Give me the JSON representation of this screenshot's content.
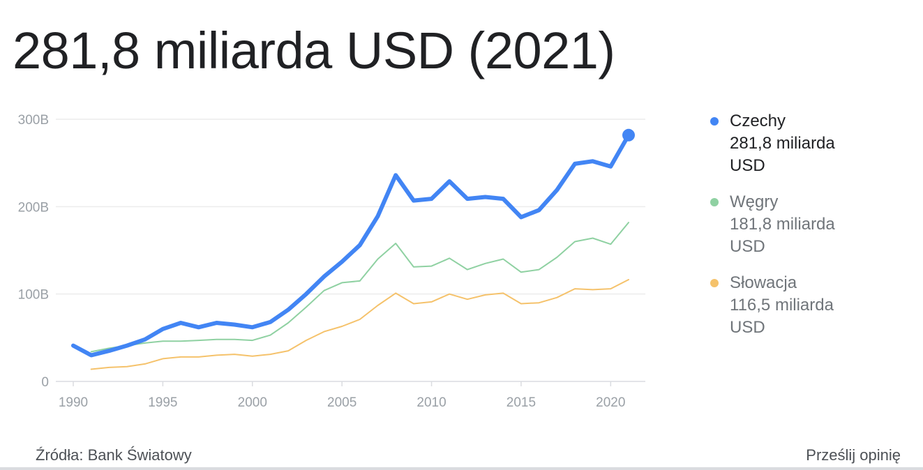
{
  "headline": "281,8 miliarda USD (2021)",
  "source": "Źródła: Bank Światowy",
  "feedback": "Prześlij opinię",
  "chart_data": {
    "type": "line",
    "title": "",
    "xlabel": "",
    "ylabel": "",
    "x": [
      1990,
      1991,
      1992,
      1993,
      1994,
      1995,
      1996,
      1997,
      1998,
      1999,
      2000,
      2001,
      2002,
      2003,
      2004,
      2005,
      2006,
      2007,
      2008,
      2009,
      2010,
      2011,
      2012,
      2013,
      2014,
      2015,
      2016,
      2017,
      2018,
      2019,
      2020,
      2021
    ],
    "xlim": [
      1990,
      2021
    ],
    "ylim": [
      0,
      300
    ],
    "grid": true,
    "legend_position": "right",
    "x_ticks": [
      1990,
      1995,
      2000,
      2005,
      2010,
      2015,
      2020
    ],
    "x_tick_labels": [
      "1990",
      "1995",
      "2000",
      "2005",
      "2010",
      "2015",
      "2020"
    ],
    "y_ticks": [
      0,
      100,
      200,
      300
    ],
    "y_tick_labels": [
      "0",
      "100B",
      "200B",
      "300B"
    ],
    "series": [
      {
        "name": "Czechy",
        "value_label": "281,8 miliarda USD",
        "color": "#4285f4",
        "highlight": true,
        "values": [
          41,
          30,
          35,
          41,
          48,
          60,
          67,
          62,
          67,
          65,
          62,
          68,
          82,
          100,
          120,
          137,
          156,
          189,
          236,
          207,
          209,
          229,
          209,
          211,
          209,
          188,
          196,
          219,
          249,
          252,
          246,
          281.8
        ]
      },
      {
        "name": "Węgry",
        "value_label": "181,8 miliarda USD",
        "color": "#8fd1a2",
        "highlight": false,
        "values": [
          null,
          34,
          38,
          41,
          44,
          46,
          46,
          47,
          48,
          48,
          47,
          53,
          67,
          85,
          104,
          113,
          115,
          140,
          158,
          131,
          132,
          141,
          128,
          135,
          140,
          125,
          128,
          142,
          160,
          164,
          157,
          181.8
        ]
      },
      {
        "name": "Słowacja",
        "value_label": "116,5 miliarda USD",
        "color": "#f5c26b",
        "highlight": false,
        "values": [
          null,
          14,
          16,
          17,
          20,
          26,
          28,
          28,
          30,
          31,
          29,
          31,
          35,
          47,
          57,
          63,
          71,
          87,
          101,
          89,
          91,
          100,
          94,
          99,
          101,
          89,
          90,
          96,
          106,
          105,
          106,
          116.5
        ]
      }
    ]
  }
}
